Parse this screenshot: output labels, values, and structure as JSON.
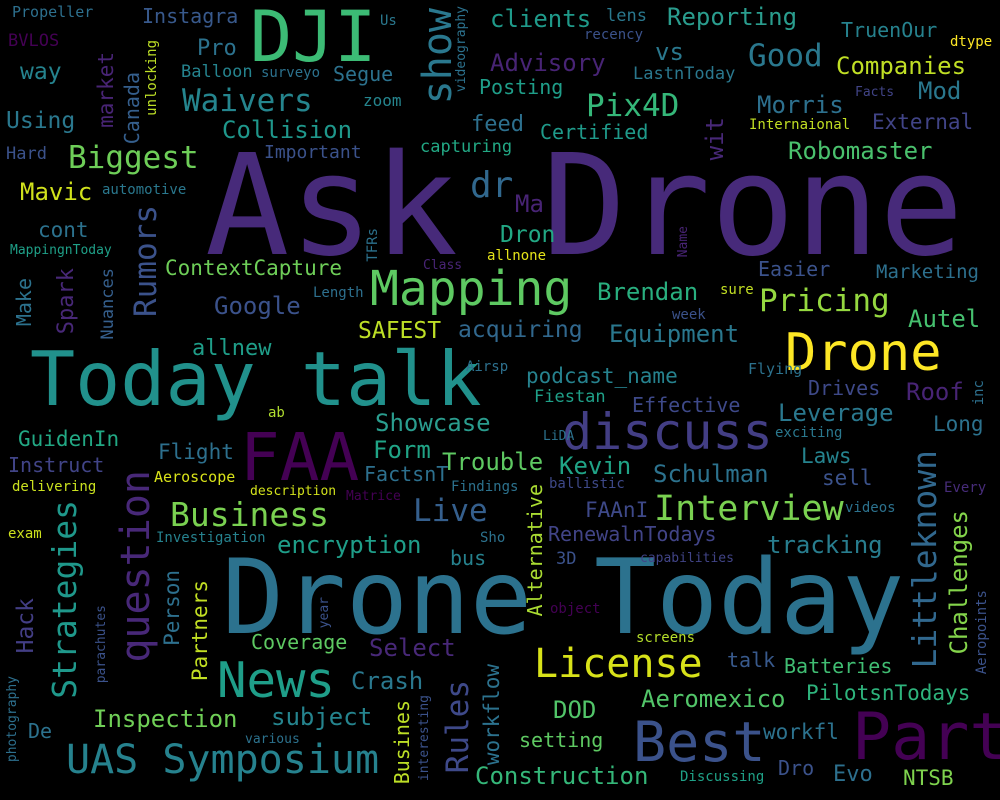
{
  "palette": {
    "background": "#000000"
  },
  "words": [
    {
      "text": "Ask Drone",
      "color": "#472a7a"
    },
    {
      "text": "Drone Today",
      "color": "#2c728e"
    },
    {
      "text": "Today talk",
      "color": "#21918c"
    },
    {
      "text": "DJI",
      "color": "#3cbb75"
    },
    {
      "text": "FAA",
      "color": "#440154"
    },
    {
      "text": "Part",
      "color": "#440154"
    },
    {
      "text": "Best",
      "color": "#3b528b"
    },
    {
      "text": "discuss",
      "color": "#433e85"
    },
    {
      "text": "Drone",
      "color": "#fde725"
    },
    {
      "text": "Mapping",
      "color": "#5ec962"
    },
    {
      "text": "News",
      "color": "#1f9e89"
    },
    {
      "text": "License",
      "color": "#d8e219"
    },
    {
      "text": "UAS Symposium",
      "color": "#26828e"
    },
    {
      "text": "show",
      "color": "#2a788e"
    },
    {
      "text": "question",
      "color": "#482878"
    },
    {
      "text": "Interview",
      "color": "#7ad151"
    },
    {
      "text": "Business",
      "color": "#7ad151"
    },
    {
      "text": "Pix4D",
      "color": "#35b779"
    },
    {
      "text": "Good",
      "color": "#2a788e"
    },
    {
      "text": "Biggest",
      "color": "#6ece58"
    },
    {
      "text": "Waivers",
      "color": "#25858e"
    },
    {
      "text": "Pricing",
      "color": "#95d840"
    },
    {
      "text": "Strategies",
      "color": "#1f988b"
    },
    {
      "text": "Rumors",
      "color": "#3b528b"
    },
    {
      "text": "Littleknown",
      "color": "#31688e"
    },
    {
      "text": "Challenges",
      "color": "#84d44b"
    },
    {
      "text": "Rules",
      "color": "#3e4989"
    },
    {
      "text": "Construction",
      "color": "#35b779"
    },
    {
      "text": "Live",
      "color": "#355f8d"
    },
    {
      "text": "Collision",
      "color": "#1f978b"
    },
    {
      "text": "Reporting",
      "color": "#2a9d8e"
    },
    {
      "text": "clients",
      "color": "#1f9a8a"
    },
    {
      "text": "Advisory",
      "color": "#482475"
    },
    {
      "text": "Morris",
      "color": "#2d708e"
    },
    {
      "text": "Companies",
      "color": "#c0df25"
    },
    {
      "text": "Mod",
      "color": "#2a788e"
    },
    {
      "text": "External",
      "color": "#414487"
    },
    {
      "text": "Robomaster",
      "color": "#4ac16d"
    },
    {
      "text": "Marketing",
      "color": "#2d708e"
    },
    {
      "text": "Autel",
      "color": "#46c06f"
    },
    {
      "text": "Brendan",
      "color": "#29af7f"
    },
    {
      "text": "Equipment",
      "color": "#2a788e"
    },
    {
      "text": "acquiring",
      "color": "#31688e"
    },
    {
      "text": "SAFEST",
      "color": "#bddf26"
    },
    {
      "text": "Google",
      "color": "#3b528b"
    },
    {
      "text": "ContextCapture",
      "color": "#6ece58"
    },
    {
      "text": "Showcase",
      "color": "#2a9d8e"
    },
    {
      "text": "Trouble",
      "color": "#5ec962"
    },
    {
      "text": "Kevin",
      "color": "#20a386"
    },
    {
      "text": "Schulman",
      "color": "#2c728e"
    },
    {
      "text": "Laws",
      "color": "#25838e"
    },
    {
      "text": "sell",
      "color": "#3b528b"
    },
    {
      "text": "Leverage",
      "color": "#2a788e"
    },
    {
      "text": "Effective",
      "color": "#3e4989"
    },
    {
      "text": "Roof",
      "color": "#482475"
    },
    {
      "text": "Long",
      "color": "#2c728e"
    },
    {
      "text": "podcast_name",
      "color": "#26828e"
    },
    {
      "text": "Fiestan",
      "color": "#1fa088"
    },
    {
      "text": "FAAnI",
      "color": "#3e4989"
    },
    {
      "text": "encryption",
      "color": "#1f9e89"
    },
    {
      "text": "tracking",
      "color": "#287d8e"
    },
    {
      "text": "Alternative",
      "color": "#aadc32"
    },
    {
      "text": "RenewalnTodays",
      "color": "#414487"
    },
    {
      "text": "Flight",
      "color": "#2d708e"
    },
    {
      "text": "Form",
      "color": "#20a486"
    },
    {
      "text": "FactsnT",
      "color": "#2d708e"
    },
    {
      "text": "GuidenIn",
      "color": "#22a884"
    },
    {
      "text": "Instruct",
      "color": "#414487"
    },
    {
      "text": "Aeroscope",
      "color": "#d8e219"
    },
    {
      "text": "delivering",
      "color": "#cae11f"
    },
    {
      "text": "description",
      "color": "#d2e21b"
    },
    {
      "text": "Matrice",
      "color": "#440154"
    },
    {
      "text": "Findings",
      "color": "#2c728e"
    },
    {
      "text": "ballistic",
      "color": "#3e4989"
    },
    {
      "text": "Person",
      "color": "#2d708e"
    },
    {
      "text": "Partners",
      "color": "#c2df23"
    },
    {
      "text": "Hack",
      "color": "#433e85"
    },
    {
      "text": "Coverage",
      "color": "#5ec962"
    },
    {
      "text": "Select",
      "color": "#482878"
    },
    {
      "text": "Crash",
      "color": "#2a788e"
    },
    {
      "text": "subject",
      "color": "#25848e"
    },
    {
      "text": "Inspection",
      "color": "#70cf57"
    },
    {
      "text": "workflow",
      "color": "#2c728e"
    },
    {
      "text": "Busines",
      "color": "#bddf26"
    },
    {
      "text": "DOD",
      "color": "#52c569"
    },
    {
      "text": "setting",
      "color": "#5ec962"
    },
    {
      "text": "Aeromexico",
      "color": "#52c569"
    },
    {
      "text": "workfl",
      "color": "#2c728e"
    },
    {
      "text": "PilotsnTodays",
      "color": "#2eb37c"
    },
    {
      "text": "Batteries",
      "color": "#40bd72"
    },
    {
      "text": "talk",
      "color": "#38598c"
    },
    {
      "text": "Evo",
      "color": "#2d708e"
    },
    {
      "text": "NTSB",
      "color": "#7fd34e"
    },
    {
      "text": "Dro",
      "color": "#3b528b"
    },
    {
      "text": "Discussing",
      "color": "#1fa187"
    },
    {
      "text": "De",
      "color": "#2c728e"
    },
    {
      "text": "Using",
      "color": "#2a788e"
    },
    {
      "text": "Hard",
      "color": "#3b528b"
    },
    {
      "text": "Mavic",
      "color": "#d0e11c"
    },
    {
      "text": "automotive",
      "color": "#2a788e"
    },
    {
      "text": "cont",
      "color": "#2c728e"
    },
    {
      "text": "MappingnToday",
      "color": "#1fa088"
    },
    {
      "text": "Make",
      "color": "#2c728e"
    },
    {
      "text": "Spark",
      "color": "#482878"
    },
    {
      "text": "Nuances",
      "color": "#355f8d"
    },
    {
      "text": "Canada",
      "color": "#355f8d"
    },
    {
      "text": "market",
      "color": "#482475"
    },
    {
      "text": "unlocking",
      "color": "#bddf26"
    },
    {
      "text": "way",
      "color": "#25838e"
    },
    {
      "text": "BVLOS",
      "color": "#440154"
    },
    {
      "text": "Propeller",
      "color": "#2d708e"
    },
    {
      "text": "Instagra",
      "color": "#38598c"
    },
    {
      "text": "Us",
      "color": "#2a788e"
    },
    {
      "text": "videography",
      "color": "#2c728e"
    },
    {
      "text": "recency",
      "color": "#3b528b"
    },
    {
      "text": "lens",
      "color": "#2a788e"
    },
    {
      "text": "TruenOur",
      "color": "#26828e"
    },
    {
      "text": "dtype",
      "color": "#fde725"
    },
    {
      "text": "Balloon",
      "color": "#25838e"
    },
    {
      "text": "surveyo",
      "color": "#2c728e"
    },
    {
      "text": "Segue",
      "color": "#2c728e"
    },
    {
      "text": "Pro",
      "color": "#2c728e"
    },
    {
      "text": "vs",
      "color": "#2a788e"
    },
    {
      "text": "Posting",
      "color": "#1f9e89"
    },
    {
      "text": "LastnToday",
      "color": "#2a788e"
    },
    {
      "text": "Facts",
      "color": "#414487"
    },
    {
      "text": "Internaional",
      "color": "#c2df23"
    },
    {
      "text": "zoom",
      "color": "#25858e"
    },
    {
      "text": "Important",
      "color": "#3b528b"
    },
    {
      "text": "feed",
      "color": "#2d708e"
    },
    {
      "text": "Certified",
      "color": "#1f9a8a"
    },
    {
      "text": "capturing",
      "color": "#22a884"
    },
    {
      "text": "wit",
      "color": "#482878"
    },
    {
      "text": "dr",
      "color": "#31688e"
    },
    {
      "text": "Ma",
      "color": "#482475"
    },
    {
      "text": "Dron",
      "color": "#22a884"
    },
    {
      "text": "allnone",
      "color": "#e5e419"
    },
    {
      "text": "TFRs",
      "color": "#2c728e"
    },
    {
      "text": "Class",
      "color": "#482475"
    },
    {
      "text": "Name",
      "color": "#482475"
    },
    {
      "text": "Easier",
      "color": "#3b528b"
    },
    {
      "text": "Length",
      "color": "#2d708e"
    },
    {
      "text": "sure",
      "color": "#c2df23"
    },
    {
      "text": "week",
      "color": "#3b528b"
    },
    {
      "text": "allnew",
      "color": "#1f9e89"
    },
    {
      "text": "Airsp",
      "color": "#2d708e"
    },
    {
      "text": "Flying",
      "color": "#2c728e"
    },
    {
      "text": "Drives",
      "color": "#3e4989"
    },
    {
      "text": "inc",
      "color": "#2d708e"
    },
    {
      "text": "exciting",
      "color": "#2a788e"
    },
    {
      "text": "ab",
      "color": "#b0dd2f"
    },
    {
      "text": "LiDA",
      "color": "#2c728e"
    },
    {
      "text": "Every",
      "color": "#472c7a"
    },
    {
      "text": "videos",
      "color": "#2c728e"
    },
    {
      "text": "exam",
      "color": "#cde11d"
    },
    {
      "text": "Investigation",
      "color": "#26828e"
    },
    {
      "text": "Sho",
      "color": "#2c728e"
    },
    {
      "text": "3D",
      "color": "#3b528b"
    },
    {
      "text": "capabilities",
      "color": "#414487"
    },
    {
      "text": "bus",
      "color": "#26828e"
    },
    {
      "text": "object",
      "color": "#440154"
    },
    {
      "text": "screens",
      "color": "#b5de2b"
    },
    {
      "text": "Aeropoints",
      "color": "#3b528b"
    },
    {
      "text": "parachutes",
      "color": "#3b528b"
    },
    {
      "text": "year",
      "color": "#3b528b"
    },
    {
      "text": "photography",
      "color": "#2d708e"
    },
    {
      "text": "various",
      "color": "#2c728e"
    },
    {
      "text": "interesting",
      "color": "#3b528b"
    }
  ]
}
